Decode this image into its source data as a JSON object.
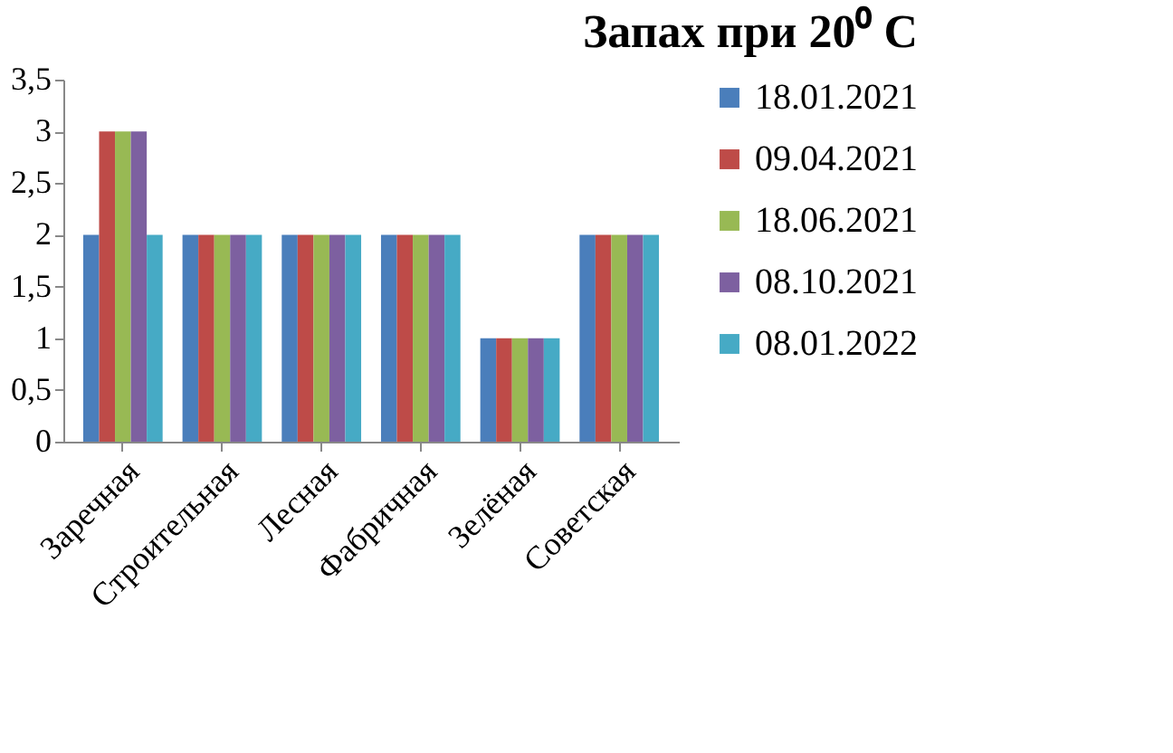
{
  "chart_data": {
    "type": "bar",
    "title": "Запах при 20⁰ C",
    "categories": [
      "Заречная",
      "Строительная",
      "Лесная",
      "Фабричная",
      "Зелёная",
      "Советская"
    ],
    "series": [
      {
        "name": "18.01.2021",
        "color": "#4a7ebb",
        "values": [
          2,
          2,
          2,
          2,
          1,
          2
        ]
      },
      {
        "name": "09.04.2021",
        "color": "#be4b48",
        "values": [
          3,
          2,
          2,
          2,
          1,
          2
        ]
      },
      {
        "name": "18.06.2021",
        "color": "#98b954",
        "values": [
          3,
          2,
          2,
          2,
          1,
          2
        ]
      },
      {
        "name": "08.10.2021",
        "color": "#7d60a0",
        "values": [
          3,
          2,
          2,
          2,
          1,
          2
        ]
      },
      {
        "name": "08.01.2022",
        "color": "#46aac5",
        "values": [
          2,
          2,
          2,
          2,
          1,
          2
        ]
      }
    ],
    "ylim": [
      0,
      3.5
    ],
    "yticks": [
      0,
      {
        "value": 0.5,
        "label": "0,5"
      },
      1,
      {
        "value": 1.5,
        "label": "1,5"
      },
      2,
      {
        "value": 2.5,
        "label": "2,5"
      },
      3,
      {
        "value": 3.5,
        "label": "3,5"
      }
    ],
    "grid": false,
    "legend": "right"
  }
}
